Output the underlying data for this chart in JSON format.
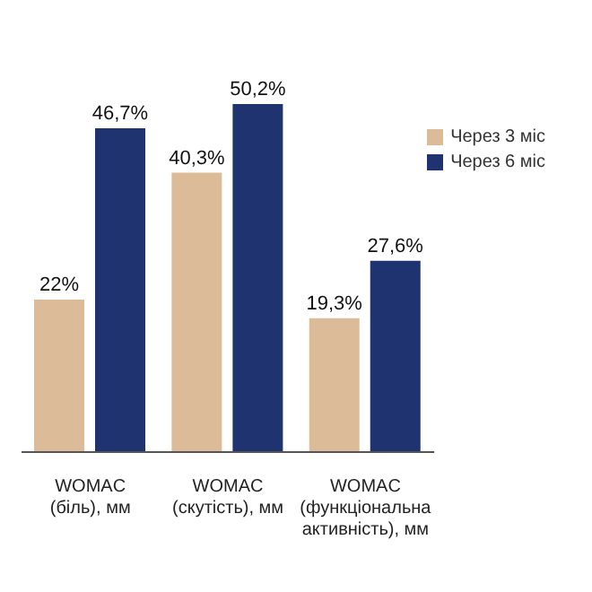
{
  "chart_data": {
    "type": "bar",
    "categories": [
      "WOMAC (біль), мм",
      "WOMAC (скутість), мм",
      "WOMAC (функціональна активність), мм"
    ],
    "series": [
      {
        "name": "Через 3 міс",
        "color": "#dcbc98",
        "values": [
          22,
          40.3,
          19.3
        ],
        "value_labels": [
          "22%",
          "40,3%",
          "19,3%"
        ]
      },
      {
        "name": "Через 6 міс",
        "color": "#1f3370",
        "values": [
          46.7,
          50.2,
          27.6
        ],
        "value_labels": [
          "46,7%",
          "50,2%",
          "27,6%"
        ]
      }
    ],
    "legend": "top right"
  }
}
